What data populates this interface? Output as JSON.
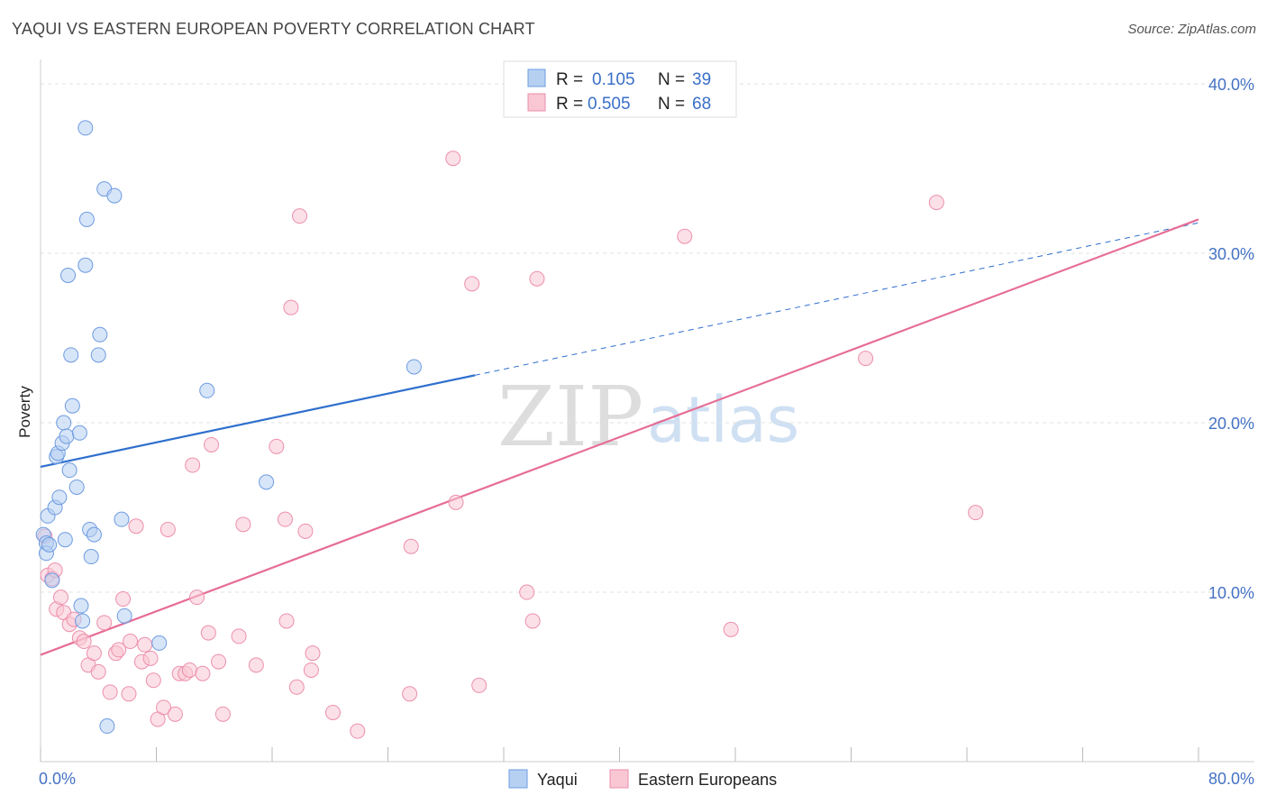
{
  "title": "YAQUI VS EASTERN EUROPEAN POVERTY CORRELATION CHART",
  "source": "Source: ZipAtlas.com",
  "watermark": {
    "zip": "ZIP",
    "atlas": "atlas"
  },
  "colors": {
    "yaqui_fill": "#b6d0f2",
    "yaqui_stroke": "#6d9be0",
    "yaqui_line": "#2f6fce",
    "ee_fill": "#f9c6d4",
    "ee_stroke": "#ec8fac",
    "ee_line": "#e66d95",
    "grid": "#e2e2e2",
    "axis_text": "#4472c4"
  },
  "legend": {
    "rows": [
      {
        "r_label": "R =",
        "r_value": "0.105",
        "n_label": "N =",
        "n_value": "39"
      },
      {
        "r_label": "R =",
        "r_value": "0.505",
        "n_label": "N =",
        "n_value": "68"
      }
    ]
  },
  "chart_data": {
    "type": "scatter",
    "title": "YAQUI VS EASTERN EUROPEAN POVERTY CORRELATION CHART",
    "xlabel": "",
    "ylabel": "Poverty",
    "xlim": [
      0,
      80
    ],
    "ylim": [
      0,
      40.8
    ],
    "x_ticks_labeled": [
      "0.0%",
      "80.0%"
    ],
    "y_ticks": [
      10,
      20,
      30,
      40
    ],
    "y_tick_labels": [
      "10.0%",
      "20.0%",
      "30.0%",
      "40.0%"
    ],
    "grid": true,
    "legend_position": "top-center",
    "series": [
      {
        "name": "Yaqui",
        "r": 0.105,
        "n": 39,
        "trend": {
          "solid": [
            [
              0,
              17.4
            ],
            [
              30,
              22.8
            ]
          ],
          "dashed": [
            [
              30,
              22.8
            ],
            [
              80,
              31.8
            ]
          ]
        },
        "points": [
          [
            0.2,
            13.4
          ],
          [
            0.4,
            12.9
          ],
          [
            0.4,
            12.3
          ],
          [
            0.5,
            14.5
          ],
          [
            0.6,
            12.8
          ],
          [
            0.8,
            10.7
          ],
          [
            1.0,
            15.0
          ],
          [
            1.1,
            18.0
          ],
          [
            1.2,
            18.2
          ],
          [
            1.3,
            15.6
          ],
          [
            1.5,
            18.8
          ],
          [
            1.6,
            20.0
          ],
          [
            1.7,
            13.1
          ],
          [
            1.8,
            19.2
          ],
          [
            1.9,
            28.7
          ],
          [
            2.0,
            17.2
          ],
          [
            2.1,
            24.0
          ],
          [
            2.2,
            21.0
          ],
          [
            2.5,
            16.2
          ],
          [
            2.7,
            19.4
          ],
          [
            2.8,
            9.2
          ],
          [
            2.9,
            8.3
          ],
          [
            3.1,
            37.4
          ],
          [
            3.1,
            29.3
          ],
          [
            3.2,
            32.0
          ],
          [
            3.4,
            13.7
          ],
          [
            3.5,
            12.1
          ],
          [
            3.7,
            13.4
          ],
          [
            4.0,
            24.0
          ],
          [
            4.1,
            25.2
          ],
          [
            4.4,
            33.8
          ],
          [
            4.6,
            2.1
          ],
          [
            5.1,
            33.4
          ],
          [
            5.6,
            14.3
          ],
          [
            5.8,
            8.6
          ],
          [
            8.2,
            7.0
          ],
          [
            11.5,
            21.9
          ],
          [
            15.6,
            16.5
          ],
          [
            25.8,
            23.3
          ]
        ]
      },
      {
        "name": "Eastern Europeans",
        "r": 0.505,
        "n": 68,
        "trend": {
          "solid": [
            [
              0,
              6.3
            ],
            [
              80,
              32.0
            ]
          ]
        },
        "points": [
          [
            0.3,
            13.3
          ],
          [
            0.5,
            11.0
          ],
          [
            0.8,
            10.8
          ],
          [
            1.0,
            11.3
          ],
          [
            1.1,
            9.0
          ],
          [
            1.4,
            9.7
          ],
          [
            1.6,
            8.8
          ],
          [
            2.0,
            8.1
          ],
          [
            2.3,
            8.4
          ],
          [
            2.7,
            7.3
          ],
          [
            3.0,
            7.1
          ],
          [
            3.3,
            5.7
          ],
          [
            3.7,
            6.4
          ],
          [
            4.0,
            5.3
          ],
          [
            4.4,
            8.2
          ],
          [
            4.8,
            4.1
          ],
          [
            5.2,
            6.4
          ],
          [
            5.4,
            6.6
          ],
          [
            5.7,
            9.6
          ],
          [
            6.1,
            4.0
          ],
          [
            6.2,
            7.1
          ],
          [
            6.6,
            13.9
          ],
          [
            7.0,
            5.9
          ],
          [
            7.2,
            6.9
          ],
          [
            7.6,
            6.1
          ],
          [
            7.8,
            4.8
          ],
          [
            8.1,
            2.5
          ],
          [
            8.5,
            3.2
          ],
          [
            8.8,
            13.7
          ],
          [
            9.3,
            2.8
          ],
          [
            9.6,
            5.2
          ],
          [
            10.0,
            5.2
          ],
          [
            10.3,
            5.4
          ],
          [
            10.5,
            17.5
          ],
          [
            10.8,
            9.7
          ],
          [
            11.2,
            5.2
          ],
          [
            11.6,
            7.6
          ],
          [
            11.8,
            18.7
          ],
          [
            12.3,
            5.9
          ],
          [
            12.6,
            2.8
          ],
          [
            13.7,
            7.4
          ],
          [
            14.0,
            14.0
          ],
          [
            14.9,
            5.7
          ],
          [
            16.3,
            18.6
          ],
          [
            16.9,
            14.3
          ],
          [
            17.0,
            8.3
          ],
          [
            17.3,
            26.8
          ],
          [
            17.7,
            4.4
          ],
          [
            17.9,
            32.2
          ],
          [
            18.3,
            13.6
          ],
          [
            18.7,
            5.4
          ],
          [
            18.8,
            6.4
          ],
          [
            20.2,
            2.9
          ],
          [
            21.9,
            1.8
          ],
          [
            25.5,
            4.0
          ],
          [
            25.6,
            12.7
          ],
          [
            28.5,
            35.6
          ],
          [
            28.7,
            15.3
          ],
          [
            29.8,
            28.2
          ],
          [
            30.3,
            4.5
          ],
          [
            33.6,
            10.0
          ],
          [
            34.0,
            8.3
          ],
          [
            34.3,
            28.5
          ],
          [
            44.5,
            31.0
          ],
          [
            47.7,
            7.8
          ],
          [
            57.0,
            23.8
          ],
          [
            64.6,
            14.7
          ],
          [
            61.9,
            33.0
          ]
        ]
      }
    ]
  },
  "bottom_legend": [
    {
      "label": "Yaqui"
    },
    {
      "label": "Eastern Europeans"
    }
  ]
}
